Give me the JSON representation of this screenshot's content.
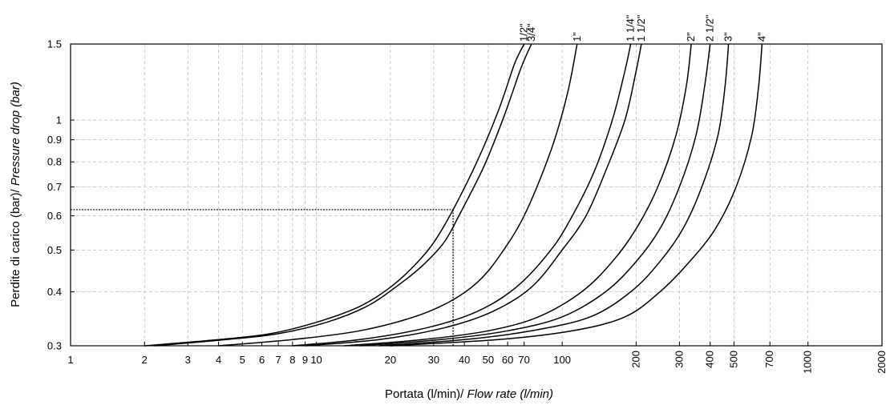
{
  "chart_data": {
    "type": "line",
    "title": "",
    "xlabel": "Portata (l/min)/ ",
    "xlabel_italic": "Flow rate (l/min)",
    "ylabel": "Perdite di carico (bar)/ ",
    "ylabel_italic": "Pressure drop (bar)",
    "x_scale": "log",
    "y_scale": "log",
    "xlim": [
      1,
      2000
    ],
    "ylim": [
      0.3,
      1.5
    ],
    "grid": true,
    "x_ticks": [
      1,
      2,
      3,
      4,
      5,
      6,
      7,
      8,
      9,
      10,
      20,
      30,
      40,
      50,
      60,
      70,
      100,
      200,
      300,
      400,
      500,
      700,
      1000,
      2000
    ],
    "x_tick_labels": [
      "1",
      "2",
      "3",
      "4",
      "5",
      "6",
      "7",
      "8",
      "9",
      "10",
      "20",
      "30",
      "40",
      "50",
      "60",
      "70",
      "100",
      "200",
      "300",
      "400",
      "500",
      "700",
      "1000",
      "2000"
    ],
    "y_ticks": [
      0.3,
      0.4,
      0.5,
      0.6,
      0.7,
      0.8,
      0.9,
      1,
      1.5
    ],
    "y_tick_labels": [
      "0.3",
      "0.4",
      "0.5",
      "0.6",
      "0.7",
      "0.8",
      "0.9",
      "1",
      "1.5"
    ],
    "series": [
      {
        "name": "1/2\"",
        "x": [
          2,
          4,
          6.5,
          10,
          15,
          20,
          25,
          30,
          36,
          45,
          55,
          64,
          70
        ],
        "y": [
          0.3,
          0.31,
          0.32,
          0.34,
          0.37,
          0.41,
          0.46,
          0.52,
          0.62,
          0.8,
          1.05,
          1.35,
          1.5
        ]
      },
      {
        "name": "3/4\"",
        "x": [
          2.2,
          4.3,
          7,
          11,
          16,
          21,
          27,
          33,
          38,
          48,
          58,
          68,
          75
        ],
        "y": [
          0.3,
          0.31,
          0.32,
          0.34,
          0.37,
          0.41,
          0.46,
          0.52,
          0.6,
          0.78,
          1.02,
          1.32,
          1.5
        ]
      },
      {
        "name": "1\"",
        "x": [
          4,
          8,
          15,
          25,
          35,
          45,
          55,
          70,
          90,
          105,
          115
        ],
        "y": [
          0.3,
          0.31,
          0.325,
          0.35,
          0.38,
          0.42,
          0.48,
          0.6,
          0.85,
          1.15,
          1.5
        ]
      },
      {
        "name": "1 1/4\"",
        "x": [
          8,
          15,
          28,
          45,
          65,
          90,
          110,
          135,
          160,
          180,
          190
        ],
        "y": [
          0.3,
          0.31,
          0.33,
          0.36,
          0.41,
          0.5,
          0.6,
          0.76,
          1.0,
          1.3,
          1.5
        ]
      },
      {
        "name": "1 1/2\"",
        "x": [
          9,
          18,
          33,
          52,
          75,
          100,
          125,
          150,
          180,
          200,
          210
        ],
        "y": [
          0.3,
          0.31,
          0.33,
          0.36,
          0.41,
          0.5,
          0.6,
          0.76,
          1.0,
          1.3,
          1.5
        ]
      },
      {
        "name": "2\"",
        "x": [
          13,
          27,
          50,
          80,
          120,
          160,
          200,
          245,
          290,
          320,
          335
        ],
        "y": [
          0.3,
          0.31,
          0.325,
          0.35,
          0.4,
          0.47,
          0.56,
          0.7,
          0.92,
          1.2,
          1.5
        ]
      },
      {
        "name": "2 1/2\"",
        "x": [
          15,
          32,
          60,
          100,
          150,
          200,
          250,
          300,
          350,
          380,
          400
        ],
        "y": [
          0.3,
          0.31,
          0.325,
          0.35,
          0.4,
          0.47,
          0.56,
          0.7,
          0.92,
          1.2,
          1.5
        ]
      },
      {
        "name": "3\"",
        "x": [
          18,
          40,
          75,
          130,
          190,
          250,
          310,
          370,
          430,
          460,
          475
        ],
        "y": [
          0.3,
          0.31,
          0.325,
          0.35,
          0.4,
          0.47,
          0.56,
          0.7,
          0.92,
          1.2,
          1.5
        ]
      },
      {
        "name": "4\"",
        "x": [
          20,
          55,
          110,
          180,
          250,
          330,
          420,
          510,
          590,
          630,
          650
        ],
        "y": [
          0.3,
          0.31,
          0.325,
          0.35,
          0.4,
          0.47,
          0.56,
          0.7,
          0.92,
          1.2,
          1.5
        ]
      }
    ],
    "example_point": {
      "x": 36,
      "y": 0.62
    }
  }
}
